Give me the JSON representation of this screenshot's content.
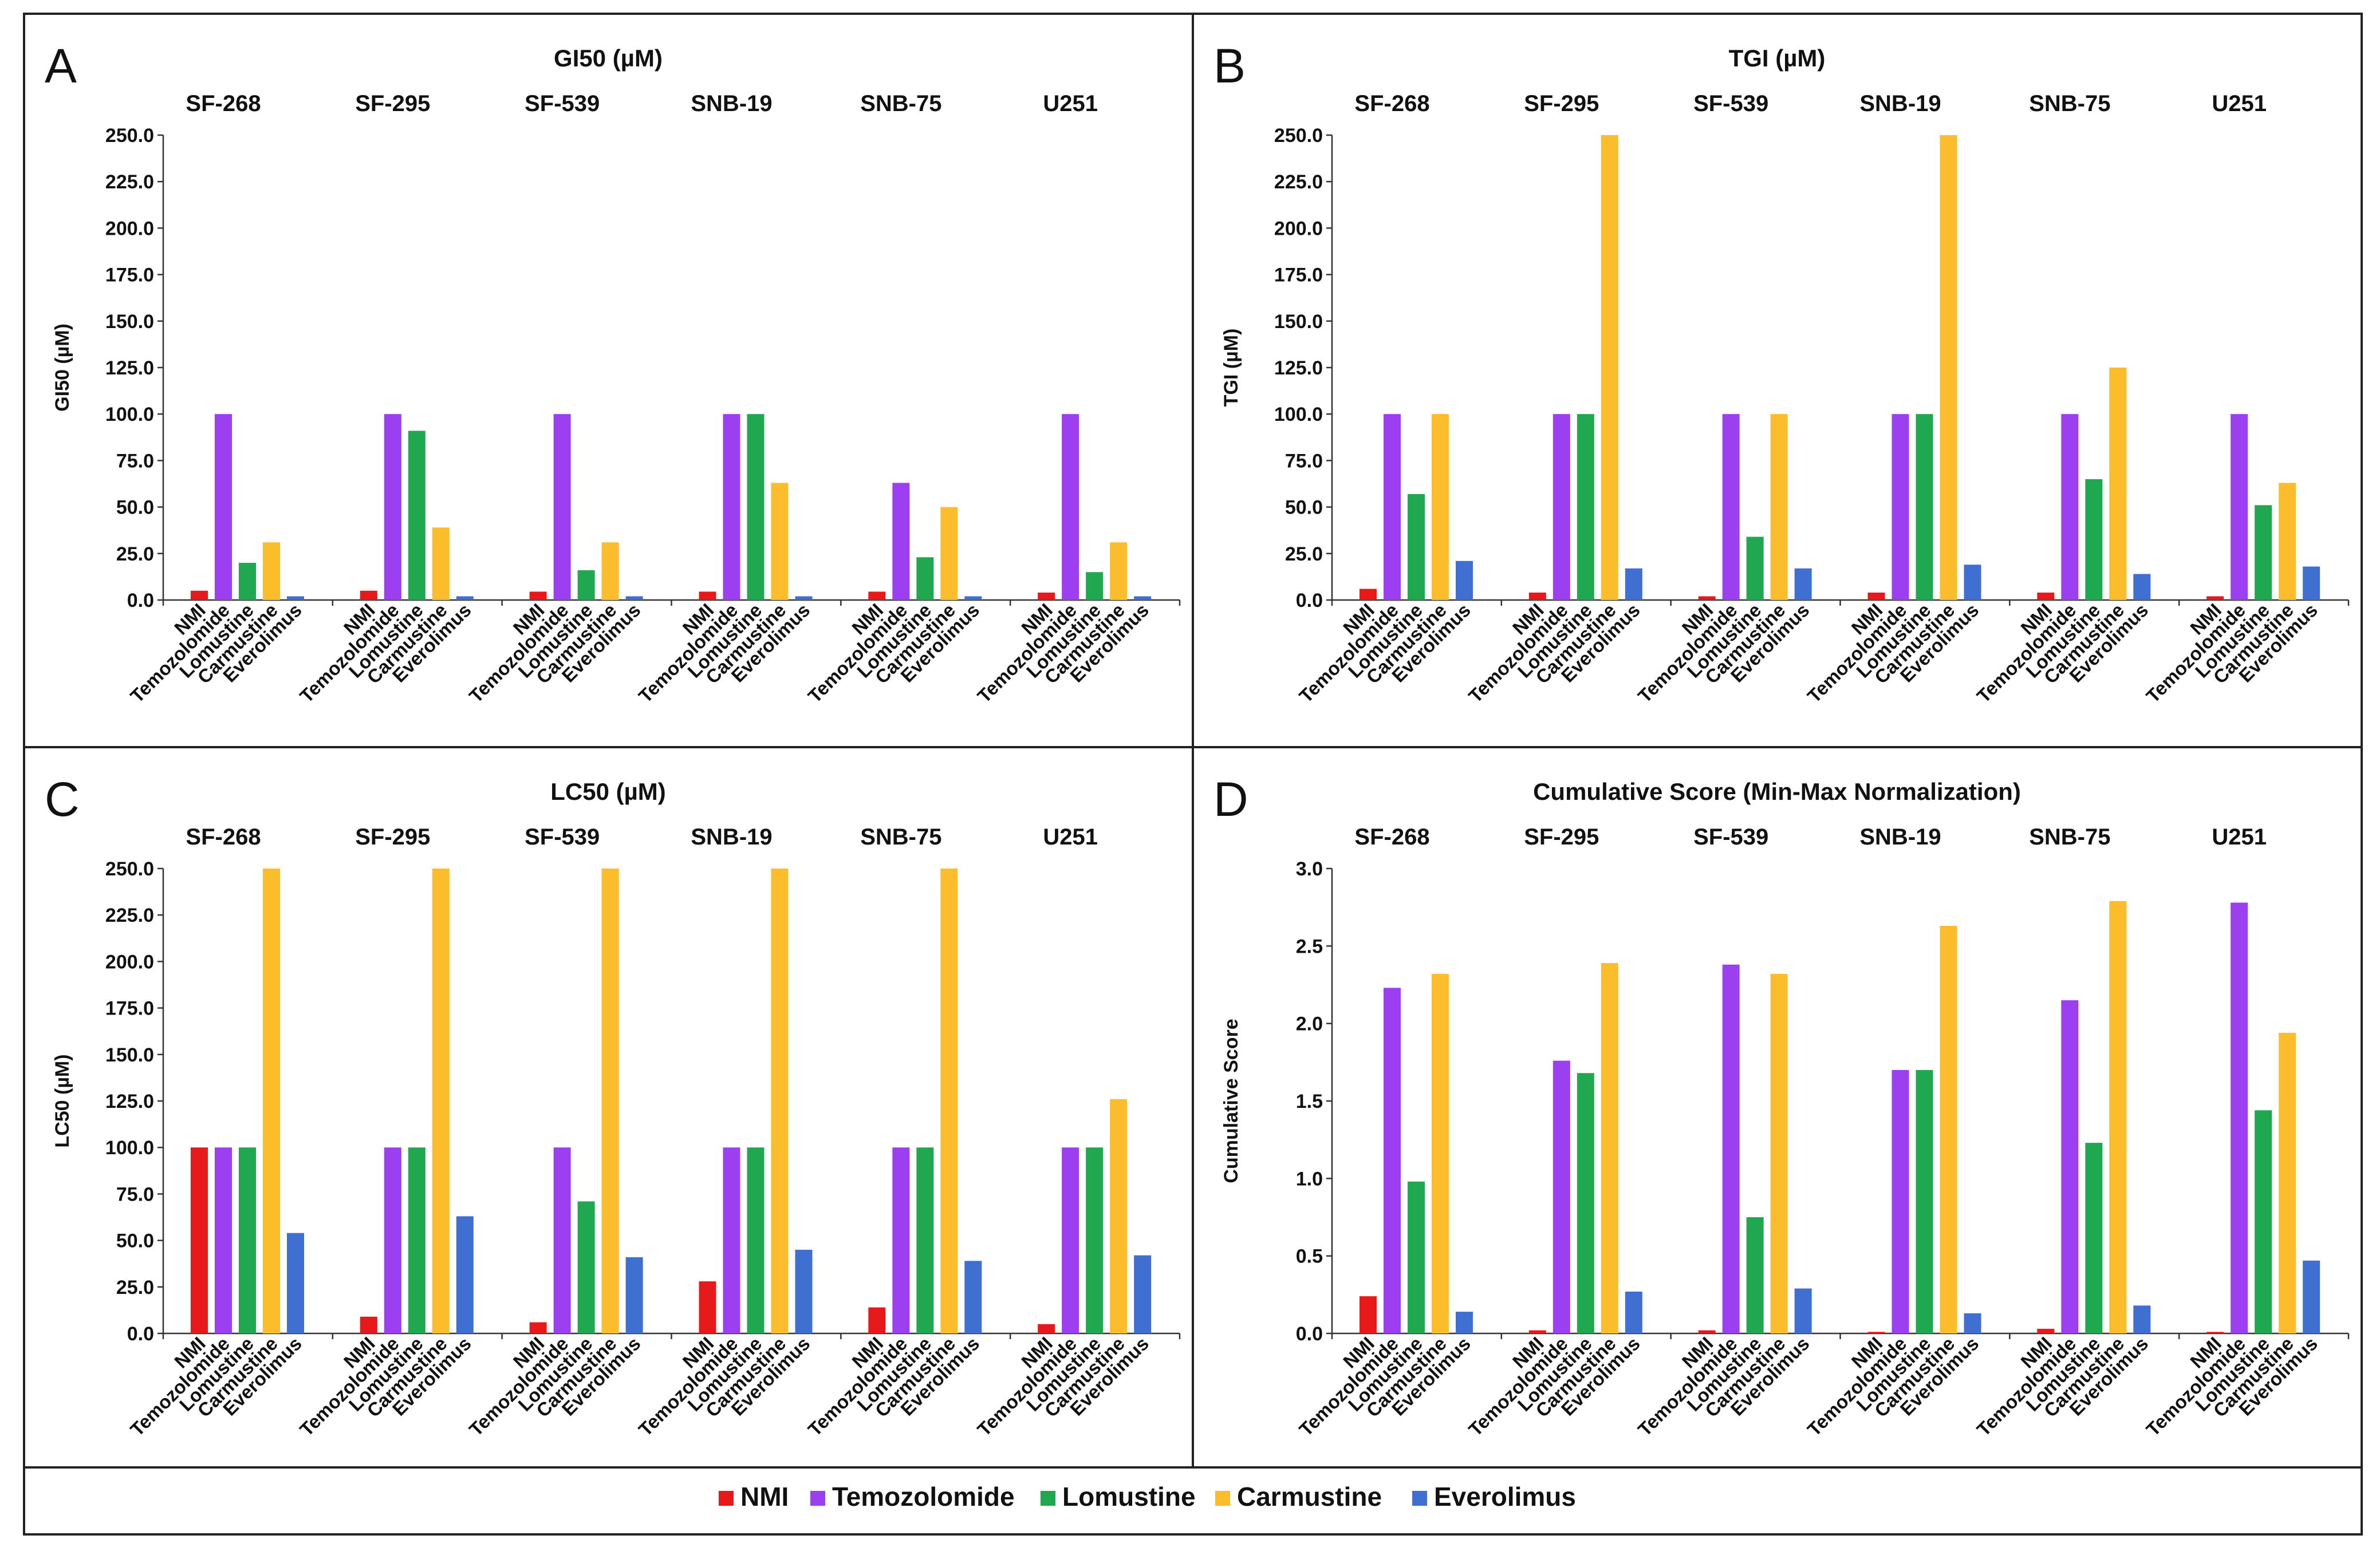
{
  "chart_data": {
    "layout": "2x2 grid of grouped bar charts with shared legend",
    "cell_lines": [
      "SF-268",
      "SF-295",
      "SF-539",
      "SNB-19",
      "SNB-75",
      "U251"
    ],
    "drugs": [
      "NMI",
      "Temozolomide",
      "Lomustine",
      "Carmustine",
      "Everolimus"
    ],
    "colors": {
      "NMI": "#e8191b",
      "Temozolomide": "#9b3ff0",
      "Lomustine": "#1fa84f",
      "Carmustine": "#fbbd2b",
      "Everolimus": "#3f6fd0"
    },
    "panels": [
      {
        "letter": "A",
        "type": "bar",
        "title": "GI50 (µM)",
        "ylabel": "GI50 (µM)",
        "ylim": [
          0,
          250
        ],
        "yticks": [
          "0.0",
          "25.0",
          "50.0",
          "75.0",
          "100.0",
          "125.0",
          "150.0",
          "175.0",
          "200.0",
          "225.0",
          "250.0"
        ],
        "series": [
          {
            "name": "NMI",
            "values": [
              5,
              5,
              4.5,
              4.5,
              4.5,
              4
            ]
          },
          {
            "name": "Temozolomide",
            "values": [
              100,
              100,
              100,
              100,
              63,
              100
            ]
          },
          {
            "name": "Lomustine",
            "values": [
              20,
              91,
              16,
              100,
              23,
              15
            ]
          },
          {
            "name": "Carmustine",
            "values": [
              31,
              39,
              31,
              63,
              50,
              31
            ]
          },
          {
            "name": "Everolimus",
            "values": [
              2,
              2,
              2,
              2,
              2,
              2
            ]
          }
        ]
      },
      {
        "letter": "B",
        "type": "bar",
        "title": "TGI (µM)",
        "ylabel": "TGI (µM)",
        "ylim": [
          0,
          250
        ],
        "yticks": [
          "0.0",
          "25.0",
          "50.0",
          "75.0",
          "100.0",
          "125.0",
          "150.0",
          "175.0",
          "200.0",
          "225.0",
          "250.0"
        ],
        "series": [
          {
            "name": "NMI",
            "values": [
              6,
              4,
              2,
              4,
              4,
              2
            ]
          },
          {
            "name": "Temozolomide",
            "values": [
              100,
              100,
              100,
              100,
              100,
              100
            ]
          },
          {
            "name": "Lomustine",
            "values": [
              57,
              100,
              34,
              100,
              65,
              51
            ]
          },
          {
            "name": "Carmustine",
            "values": [
              100,
              250,
              100,
              250,
              125,
              63
            ]
          },
          {
            "name": "Everolimus",
            "values": [
              21,
              17,
              17,
              19,
              14,
              18
            ]
          }
        ]
      },
      {
        "letter": "C",
        "type": "bar",
        "title": "LC50 (µM)",
        "ylabel": "LC50 (µM)",
        "ylim": [
          0,
          250
        ],
        "yticks": [
          "0.0",
          "25.0",
          "50.0",
          "75.0",
          "100.0",
          "125.0",
          "150.0",
          "175.0",
          "200.0",
          "225.0",
          "250.0"
        ],
        "series": [
          {
            "name": "NMI",
            "values": [
              100,
              9,
              6,
              28,
              14,
              5
            ]
          },
          {
            "name": "Temozolomide",
            "values": [
              100,
              100,
              100,
              100,
              100,
              100
            ]
          },
          {
            "name": "Lomustine",
            "values": [
              100,
              100,
              71,
              100,
              100,
              100
            ]
          },
          {
            "name": "Carmustine",
            "values": [
              250,
              250,
              250,
              250,
              250,
              126
            ]
          },
          {
            "name": "Everolimus",
            "values": [
              54,
              63,
              41,
              45,
              39,
              42
            ]
          }
        ]
      },
      {
        "letter": "D",
        "type": "bar",
        "title": "Cumulative Score (Min-Max Normalization)",
        "ylabel": "Cumulative Score",
        "ylim": [
          0,
          3
        ],
        "yticks": [
          "0.0",
          "0.5",
          "1.0",
          "1.5",
          "2.0",
          "2.5",
          "3.0"
        ],
        "series": [
          {
            "name": "NMI",
            "values": [
              0.24,
              0.02,
              0.02,
              0.01,
              0.03,
              0.01
            ]
          },
          {
            "name": "Temozolomide",
            "values": [
              2.23,
              1.76,
              2.38,
              1.7,
              2.15,
              2.78
            ]
          },
          {
            "name": "Lomustine",
            "values": [
              0.98,
              1.68,
              0.75,
              1.7,
              1.23,
              1.44
            ]
          },
          {
            "name": "Carmustine",
            "values": [
              2.32,
              2.39,
              2.32,
              2.63,
              2.79,
              1.94
            ]
          },
          {
            "name": "Everolimus",
            "values": [
              0.14,
              0.27,
              0.29,
              0.13,
              0.18,
              0.47
            ]
          }
        ]
      }
    ],
    "legend": {
      "position": "bottom",
      "entries": [
        "NMI",
        "Temozolomide",
        "Lomustine",
        "Carmustine",
        "Everolimus"
      ]
    }
  }
}
